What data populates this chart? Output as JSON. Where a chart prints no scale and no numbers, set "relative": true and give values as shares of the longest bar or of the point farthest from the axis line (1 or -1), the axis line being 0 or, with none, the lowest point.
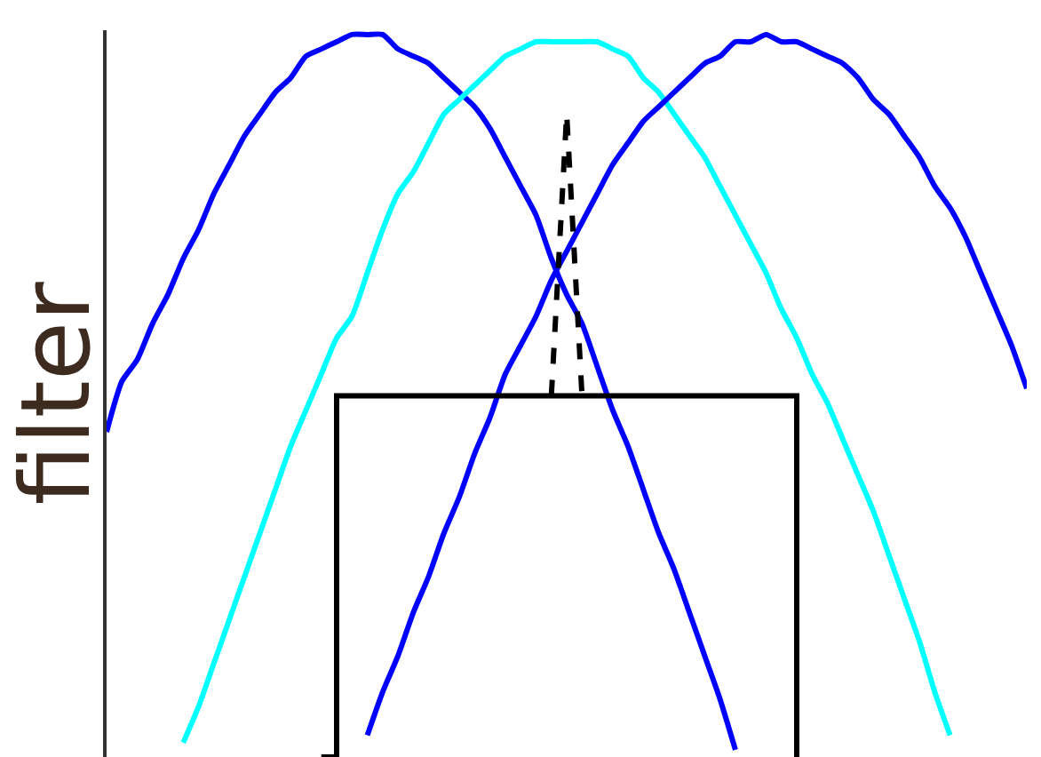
{
  "chart_data": {
    "type": "line",
    "relative": true,
    "ylabel": "filter",
    "categories": [
      null,
      null,
      null,
      null,
      null,
      null,
      null,
      null,
      null,
      null,
      null,
      null,
      null,
      null,
      null,
      null,
      null,
      null,
      null,
      null,
      null,
      null,
      null,
      null,
      null,
      null,
      null,
      null,
      null,
      null,
      null,
      null,
      null,
      null,
      null,
      null,
      null,
      null,
      null,
      null,
      null,
      null,
      null,
      null,
      null,
      null,
      null,
      null,
      null,
      null,
      null,
      null,
      null,
      null,
      null,
      null,
      null,
      null,
      null,
      null,
      null
    ],
    "series": [
      {
        "color": "#0000ff",
        "values": [
          0.45,
          0.52,
          0.55,
          0.6,
          0.64,
          0.69,
          0.73,
          0.78,
          0.82,
          0.86,
          0.89,
          0.92,
          0.94,
          0.97,
          0.98,
          0.99,
          1.0,
          1.0,
          1.0,
          0.98,
          0.97,
          0.96,
          0.94,
          0.92,
          0.9,
          0.87,
          0.83,
          0.79,
          0.75,
          0.69,
          0.64,
          0.6,
          0.54,
          0.48,
          0.43,
          0.37,
          0.31,
          0.26,
          0.2,
          0.14,
          0.08,
          0.01,
          null,
          null,
          null,
          null,
          null,
          null,
          null,
          null,
          null,
          null,
          null,
          null,
          null,
          null,
          null,
          null,
          null,
          null,
          null
        ]
      },
      {
        "color": "#00ffff",
        "values": [
          null,
          null,
          null,
          null,
          null,
          0.02,
          0.07,
          0.13,
          0.19,
          0.25,
          0.31,
          0.37,
          0.43,
          0.48,
          0.53,
          0.58,
          0.61,
          0.67,
          0.73,
          0.78,
          0.81,
          0.85,
          0.89,
          0.91,
          0.93,
          0.95,
          0.97,
          0.98,
          0.99,
          0.99,
          0.99,
          0.99,
          0.99,
          0.98,
          0.97,
          0.94,
          0.92,
          0.89,
          0.86,
          0.83,
          0.79,
          0.75,
          0.71,
          0.67,
          0.62,
          0.58,
          0.53,
          0.49,
          0.44,
          0.39,
          0.34,
          0.28,
          0.22,
          0.16,
          0.09,
          0.03,
          null,
          null,
          null,
          null,
          null
        ]
      },
      {
        "color": "#0000ff",
        "values": [
          null,
          null,
          null,
          null,
          null,
          null,
          null,
          null,
          null,
          null,
          null,
          null,
          null,
          null,
          null,
          null,
          null,
          0.03,
          0.09,
          0.14,
          0.2,
          0.25,
          0.31,
          0.36,
          0.42,
          0.47,
          0.53,
          0.57,
          0.61,
          0.66,
          0.7,
          0.74,
          0.78,
          0.82,
          0.85,
          0.88,
          0.9,
          0.92,
          0.94,
          0.96,
          0.97,
          0.99,
          0.99,
          1.0,
          0.99,
          0.99,
          0.98,
          0.97,
          0.96,
          0.94,
          0.91,
          0.89,
          0.86,
          0.83,
          0.79,
          0.76,
          0.72,
          0.67,
          0.62,
          0.57,
          0.51
        ]
      },
      {
        "type": "step",
        "color": "#000000",
        "values": [
          null,
          null,
          null,
          null,
          null,
          null,
          null,
          null,
          null,
          null,
          null,
          null,
          null,
          null,
          0,
          0.5,
          0.5,
          0.5,
          0.5,
          0.5,
          0.5,
          0.5,
          0.5,
          0.5,
          0.5,
          0.5,
          0.5,
          0.5,
          0.5,
          0.5,
          0.5,
          0.5,
          0.5,
          0.5,
          0.5,
          0.5,
          0.5,
          0.5,
          0.5,
          0.5,
          0.5,
          0.5,
          0.5,
          0.5,
          0.5,
          0,
          null,
          null,
          null,
          null,
          null,
          null,
          null,
          null,
          null,
          null,
          null,
          null,
          null,
          null,
          null
        ]
      },
      {
        "color": "#000000",
        "line_style": "dashed",
        "values": [
          null,
          null,
          null,
          null,
          null,
          null,
          null,
          null,
          null,
          null,
          null,
          null,
          null,
          null,
          null,
          null,
          null,
          null,
          null,
          null,
          null,
          null,
          null,
          null,
          null,
          null,
          null,
          null,
          null,
          0.5,
          0.89,
          0.5,
          null,
          null,
          null,
          null,
          null,
          null,
          null,
          null,
          null,
          null,
          null,
          null,
          null,
          null,
          null,
          null,
          null,
          null,
          null,
          null,
          null,
          null,
          null,
          null,
          null,
          null,
          null,
          null,
          null
        ]
      }
    ]
  }
}
